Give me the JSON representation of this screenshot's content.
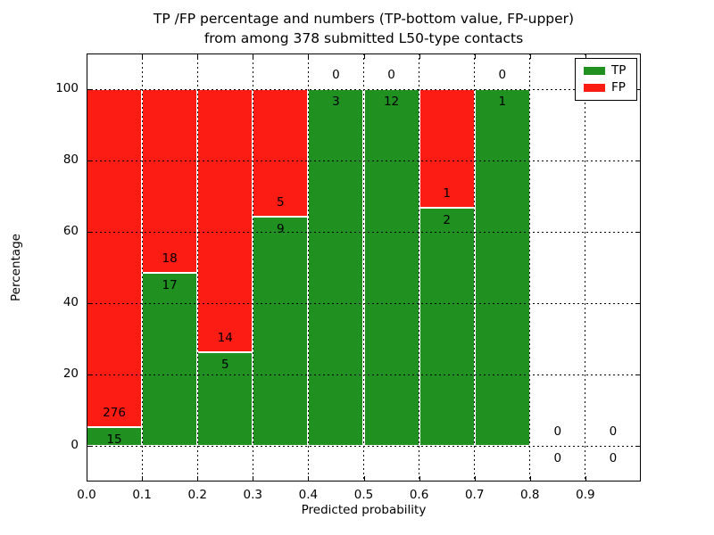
{
  "title": {
    "line1": "TP /FP percentage and numbers (TP-bottom value, FP-upper)",
    "line2": "from among 378 submitted L50-type contacts"
  },
  "axes": {
    "xlabel": "Predicted probability",
    "ylabel": "Percentage",
    "x_tick_labels": [
      "0.0",
      "0.1",
      "0.2",
      "0.3",
      "0.4",
      "0.5",
      "0.6",
      "0.7",
      "0.8",
      "0.9"
    ],
    "y_tick_labels": [
      "0",
      "20",
      "40",
      "60",
      "80",
      "100"
    ]
  },
  "legend": {
    "entries": [
      {
        "label": "TP",
        "color": "#209021"
      },
      {
        "label": "FP",
        "color": "#fc1c14"
      }
    ],
    "position": "upper right"
  },
  "chart_data": {
    "type": "bar",
    "stacking": "percent-stacked",
    "title": "TP /FP percentage and numbers (TP-bottom value, FP-upper) from among 378 submitted L50-type contacts",
    "xlabel": "Predicted probability",
    "ylabel": "Percentage",
    "xlim": [
      0.0,
      1.0
    ],
    "ylim": [
      -10,
      110
    ],
    "grid": true,
    "grid_style": "dotted",
    "legend_position": "upper right",
    "bin_width": 0.1,
    "categories": [
      "0.0-0.1",
      "0.1-0.2",
      "0.2-0.3",
      "0.3-0.4",
      "0.4-0.5",
      "0.5-0.6",
      "0.6-0.7",
      "0.7-0.8",
      "0.8-0.9",
      "0.9-1.0"
    ],
    "x_tick_values": [
      0.0,
      0.1,
      0.2,
      0.3,
      0.4,
      0.5,
      0.6,
      0.7,
      0.8,
      0.9
    ],
    "y_tick_values": [
      0,
      20,
      40,
      60,
      80,
      100
    ],
    "series": [
      {
        "name": "TP",
        "color": "#209021",
        "values": [
          15,
          17,
          5,
          9,
          3,
          12,
          2,
          1,
          0,
          0
        ]
      },
      {
        "name": "FP",
        "color": "#fc1c14",
        "values": [
          276,
          18,
          14,
          5,
          0,
          0,
          1,
          0,
          0,
          0
        ]
      }
    ],
    "tp_percent": [
      5.2,
      48.6,
      26.3,
      64.3,
      100.0,
      100.0,
      66.7,
      100.0,
      null,
      null
    ],
    "total_contacts": 378
  }
}
